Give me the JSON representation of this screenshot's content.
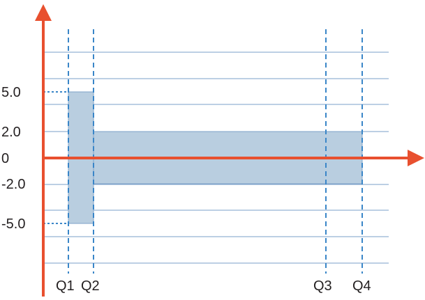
{
  "chart_data": {
    "type": "area",
    "title": "",
    "xlabel": "",
    "ylabel": "",
    "y_tick_labels": [
      "5.0",
      "2.0",
      "0",
      "-2.0",
      "-5.0"
    ],
    "y_tick_values": [
      5.0,
      2.0,
      0,
      -2.0,
      -5.0
    ],
    "x_tick_labels": [
      "Q1",
      "Q2",
      "Q3",
      "Q4"
    ],
    "grid": true,
    "regions": [
      {
        "from": "Q1",
        "to": "Q2",
        "y_min": -5.0,
        "y_max": 5.0
      },
      {
        "from": "Q2",
        "to": "Q4",
        "y_min": -2.0,
        "y_max": 2.0
      }
    ],
    "colors": {
      "axis": "#e8502f",
      "fill": "#b9cee0",
      "fill_stroke": "#7ea3c9",
      "grid": "#7a9fc9",
      "quantile_line": "#3a86c8",
      "text": "#231f20"
    }
  }
}
